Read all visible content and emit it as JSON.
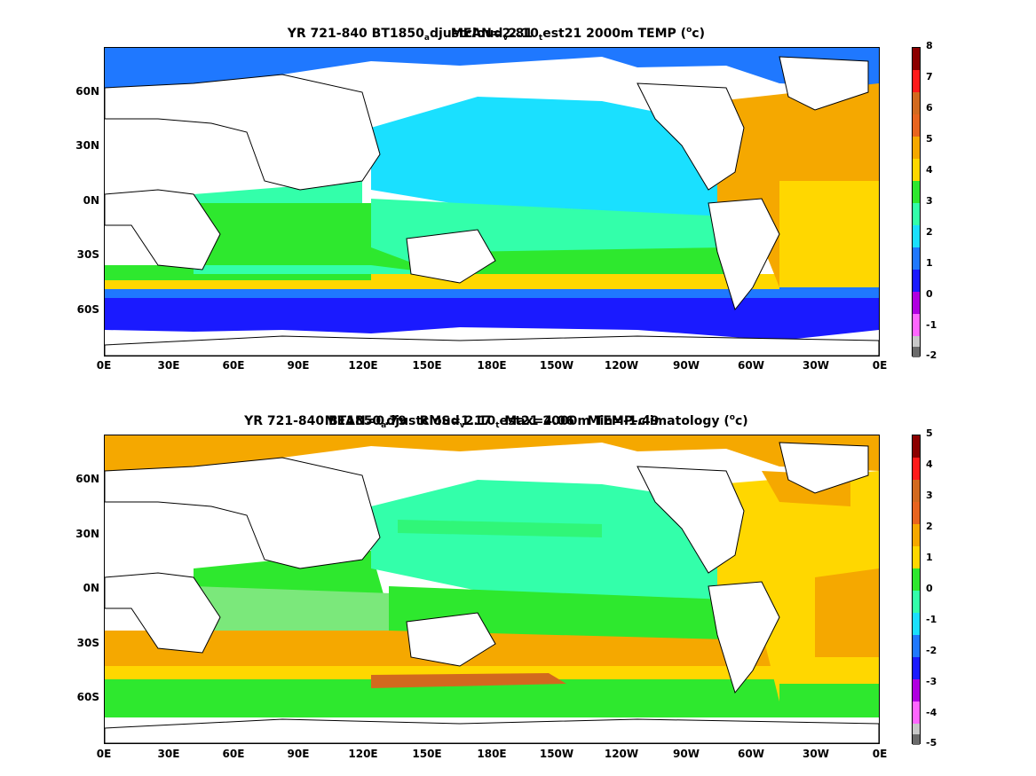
{
  "panels": [
    {
      "title_parts": [
        "YR 721-840 BT1850",
        "a",
        "djustcloud",
        "v",
        "2.10",
        "t",
        "est21 2000m TEMP (",
        "o",
        "c)"
      ],
      "subtitle": "MEAN=2.81",
      "colorbar": {
        "ticks": [
          "8",
          "7",
          "6",
          "5",
          "4",
          "3",
          "2",
          "1",
          "0",
          "-1",
          "-2"
        ],
        "colors": [
          "#8b0000",
          "#ff1a1a",
          "#e8641e",
          "#f5a800",
          "#ffd700",
          "#2ee82e",
          "#33ffaa",
          "#1ae0ff",
          "#1f78ff",
          "#1a1aff",
          "#b000e0",
          "#ff66ff",
          "#c8c8c8",
          "#6b6b6b"
        ]
      }
    },
    {
      "title_parts": [
        "YR 721-840 BT1850",
        "a",
        "djustcloud",
        "v",
        "2.10",
        "t",
        "est21 2000m TEMP-climatology (",
        "o",
        "c)"
      ],
      "subtitle": "MEAN=0.79   RMS=1.17   Max=4.06   Min=-1.49",
      "colorbar": {
        "ticks": [
          "5",
          "4",
          "3",
          "2",
          "1",
          "0",
          "-1",
          "-2",
          "-3",
          "-4",
          "-5"
        ],
        "colors": [
          "#8b0000",
          "#ff1a1a",
          "#e8641e",
          "#f5a800",
          "#ffd700",
          "#2ee82e",
          "#33ffaa",
          "#1ae0ff",
          "#1f78ff",
          "#1a1aff",
          "#b000e0",
          "#ff66ff",
          "#c8c8c8",
          "#6b6b6b"
        ]
      }
    }
  ],
  "lat_labels": [
    "60N",
    "30N",
    "0N",
    "30S",
    "60S"
  ],
  "lon_labels": [
    "0E",
    "30E",
    "60E",
    "90E",
    "120E",
    "150E",
    "180E",
    "150W",
    "120W",
    "90W",
    "60W",
    "30W",
    "0E"
  ]
}
